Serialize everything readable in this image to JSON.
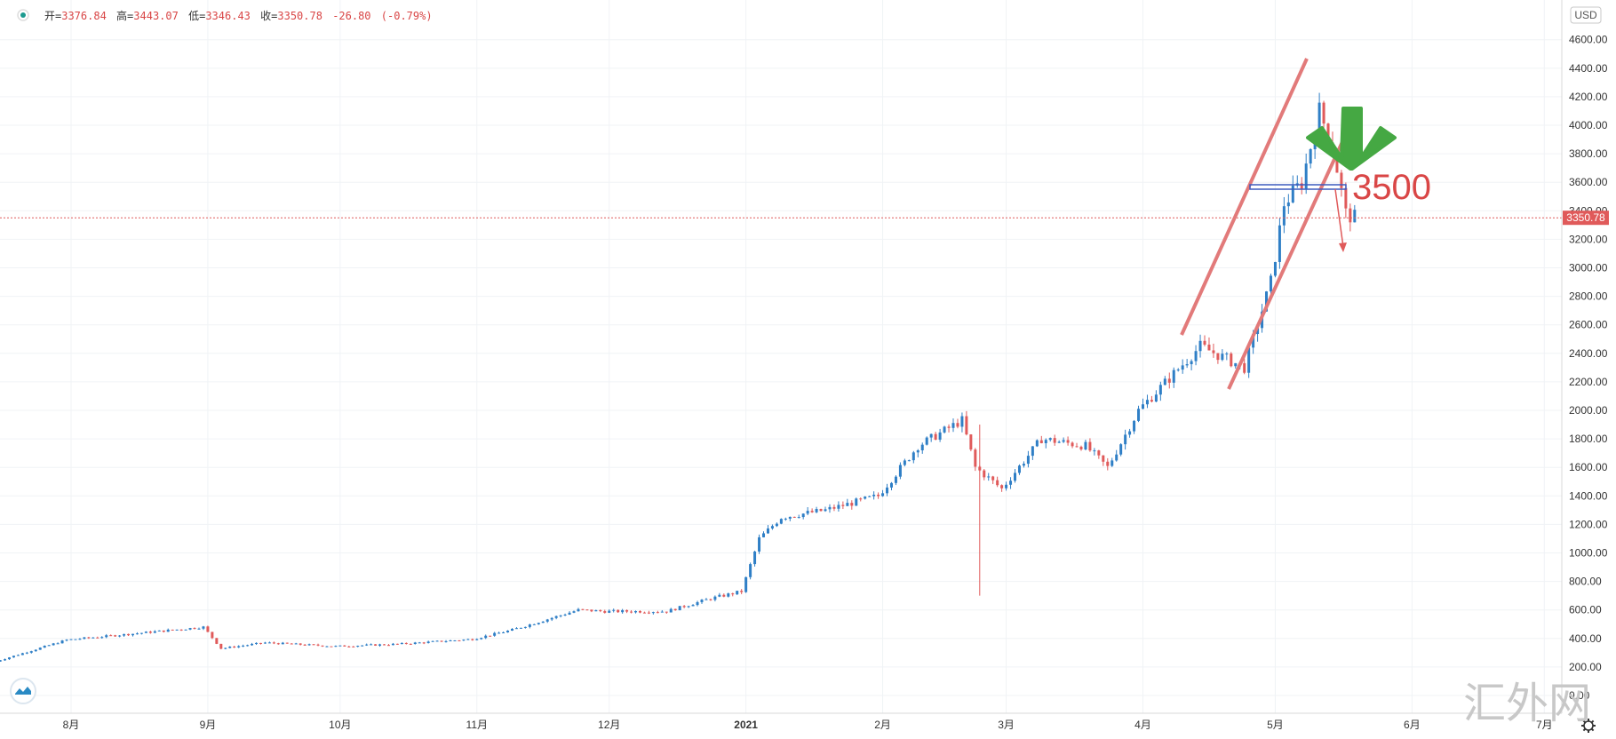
{
  "legend": {
    "open_label": "开=",
    "open": "3376.84",
    "high_label": "高=",
    "high": "3443.07",
    "low_label": "低=",
    "low": "3346.43",
    "close_label": "收=",
    "close": "3350.78",
    "change": "-26.80",
    "change_pct": "(-0.79%)"
  },
  "currency": "USD",
  "last_price_label": "3350.78",
  "annotation_text": "3500",
  "watermark": "汇外网",
  "colors": {
    "up": "#2f7fc6",
    "down": "#e05a5a",
    "channel": "#e27a7a",
    "arrow_green": "#45a843",
    "support": "#3d5bbd",
    "price_line": "#e05a5a",
    "text_red": "#d94646"
  },
  "chart_data": {
    "type": "candlestick",
    "x_tick_labels": [
      "8月",
      "9月",
      "10月",
      "11月",
      "12月",
      "2021",
      "2月",
      "3月",
      "4月",
      "5月",
      "6月",
      "7月"
    ],
    "y_tick_labels": [
      "0.00",
      "200.00",
      "400.00",
      "600.00",
      "800.00",
      "1000.00",
      "1200.00",
      "1400.00",
      "1600.00",
      "1800.00",
      "2000.00",
      "2200.00",
      "2400.00",
      "2600.00",
      "2800.00",
      "3000.00",
      "3200.00",
      "3400.00",
      "3600.00",
      "3800.00",
      "4000.00",
      "4200.00",
      "4400.00",
      "4600.00"
    ],
    "ylim": [
      0,
      4800
    ],
    "grid": true,
    "last_price": 3350.78,
    "support_level": 3500,
    "series": [
      {
        "date": "2020-07-15",
        "value": 230
      },
      {
        "date": "2020-08-01",
        "value": 390
      },
      {
        "date": "2020-08-15",
        "value": 430
      },
      {
        "date": "2020-09-01",
        "value": 480
      },
      {
        "date": "2020-09-05",
        "value": 330
      },
      {
        "date": "2020-09-15",
        "value": 370
      },
      {
        "date": "2020-10-01",
        "value": 345
      },
      {
        "date": "2020-10-15",
        "value": 360
      },
      {
        "date": "2020-11-01",
        "value": 395
      },
      {
        "date": "2020-11-10",
        "value": 460
      },
      {
        "date": "2020-11-25",
        "value": 600
      },
      {
        "date": "2020-12-01",
        "value": 590
      },
      {
        "date": "2020-12-15",
        "value": 590
      },
      {
        "date": "2020-12-25",
        "value": 680
      },
      {
        "date": "2021-01-01",
        "value": 730
      },
      {
        "date": "2021-01-05",
        "value": 1100
      },
      {
        "date": "2021-01-10",
        "value": 1250
      },
      {
        "date": "2021-01-20",
        "value": 1300
      },
      {
        "date": "2021-02-01",
        "value": 1400
      },
      {
        "date": "2021-02-10",
        "value": 1750
      },
      {
        "date": "2021-02-20",
        "value": 1930
      },
      {
        "date": "2021-02-23",
        "value": 1600
      },
      {
        "date": "2021-03-01",
        "value": 1450
      },
      {
        "date": "2021-03-10",
        "value": 1800
      },
      {
        "date": "2021-03-20",
        "value": 1750
      },
      {
        "date": "2021-03-25",
        "value": 1600
      },
      {
        "date": "2021-04-01",
        "value": 2000
      },
      {
        "date": "2021-04-15",
        "value": 2450
      },
      {
        "date": "2021-04-25",
        "value": 2300
      },
      {
        "date": "2021-05-01",
        "value": 2900
      },
      {
        "date": "2021-05-04",
        "value": 3450
      },
      {
        "date": "2021-05-08",
        "value": 3600
      },
      {
        "date": "2021-05-12",
        "value": 4100
      },
      {
        "date": "2021-05-15",
        "value": 3850
      },
      {
        "date": "2021-05-18",
        "value": 3380
      },
      {
        "date": "2021-05-20",
        "value": 3350.78
      }
    ]
  }
}
